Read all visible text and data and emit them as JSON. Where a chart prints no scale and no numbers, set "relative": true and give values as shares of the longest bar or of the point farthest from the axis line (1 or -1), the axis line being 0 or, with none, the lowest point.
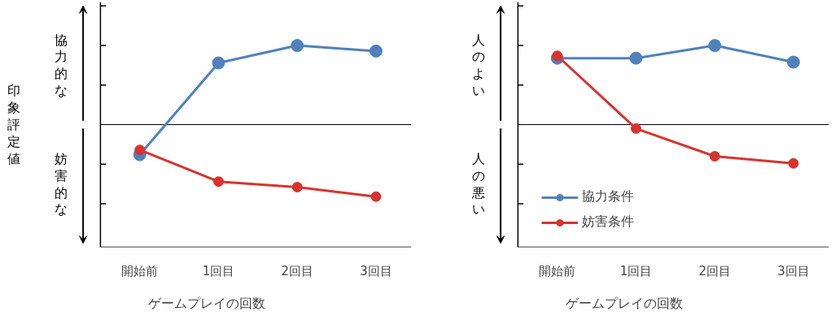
{
  "chart_data": [
    {
      "type": "line",
      "relative": true,
      "ylabel": "印象評定値",
      "xlabel": "ゲームプレイの回数",
      "categories": [
        "開始前",
        "1回目",
        "2回目",
        "3回目"
      ],
      "annotations": [
        "協力的な",
        "妨害的な"
      ],
      "marker": "circle",
      "legend": false,
      "grid": false,
      "series": [
        {
          "color": "#4f81bd",
          "values": [
            -0.38,
            0.78,
            1,
            0.93
          ]
        },
        {
          "color": "#d8332e",
          "values": [
            -0.32,
            -0.72,
            -0.79,
            -0.91
          ]
        }
      ]
    },
    {
      "type": "line",
      "relative": true,
      "xlabel": "ゲームプレイの回数",
      "categories": [
        "開始前",
        "1回目",
        "2回目",
        "3回目"
      ],
      "annotations": [
        "人のよい",
        "人の悪い"
      ],
      "marker": "circle",
      "legend": "bottom left",
      "grid": false,
      "series": [
        {
          "name": "協力条件",
          "color": "#4f81bd",
          "values": [
            0.84,
            0.84,
            1,
            0.79
          ]
        },
        {
          "name": "妨害条件",
          "color": "#d8332e",
          "values": [
            0.87,
            -0.05,
            -0.4,
            -0.49
          ]
        }
      ]
    }
  ]
}
